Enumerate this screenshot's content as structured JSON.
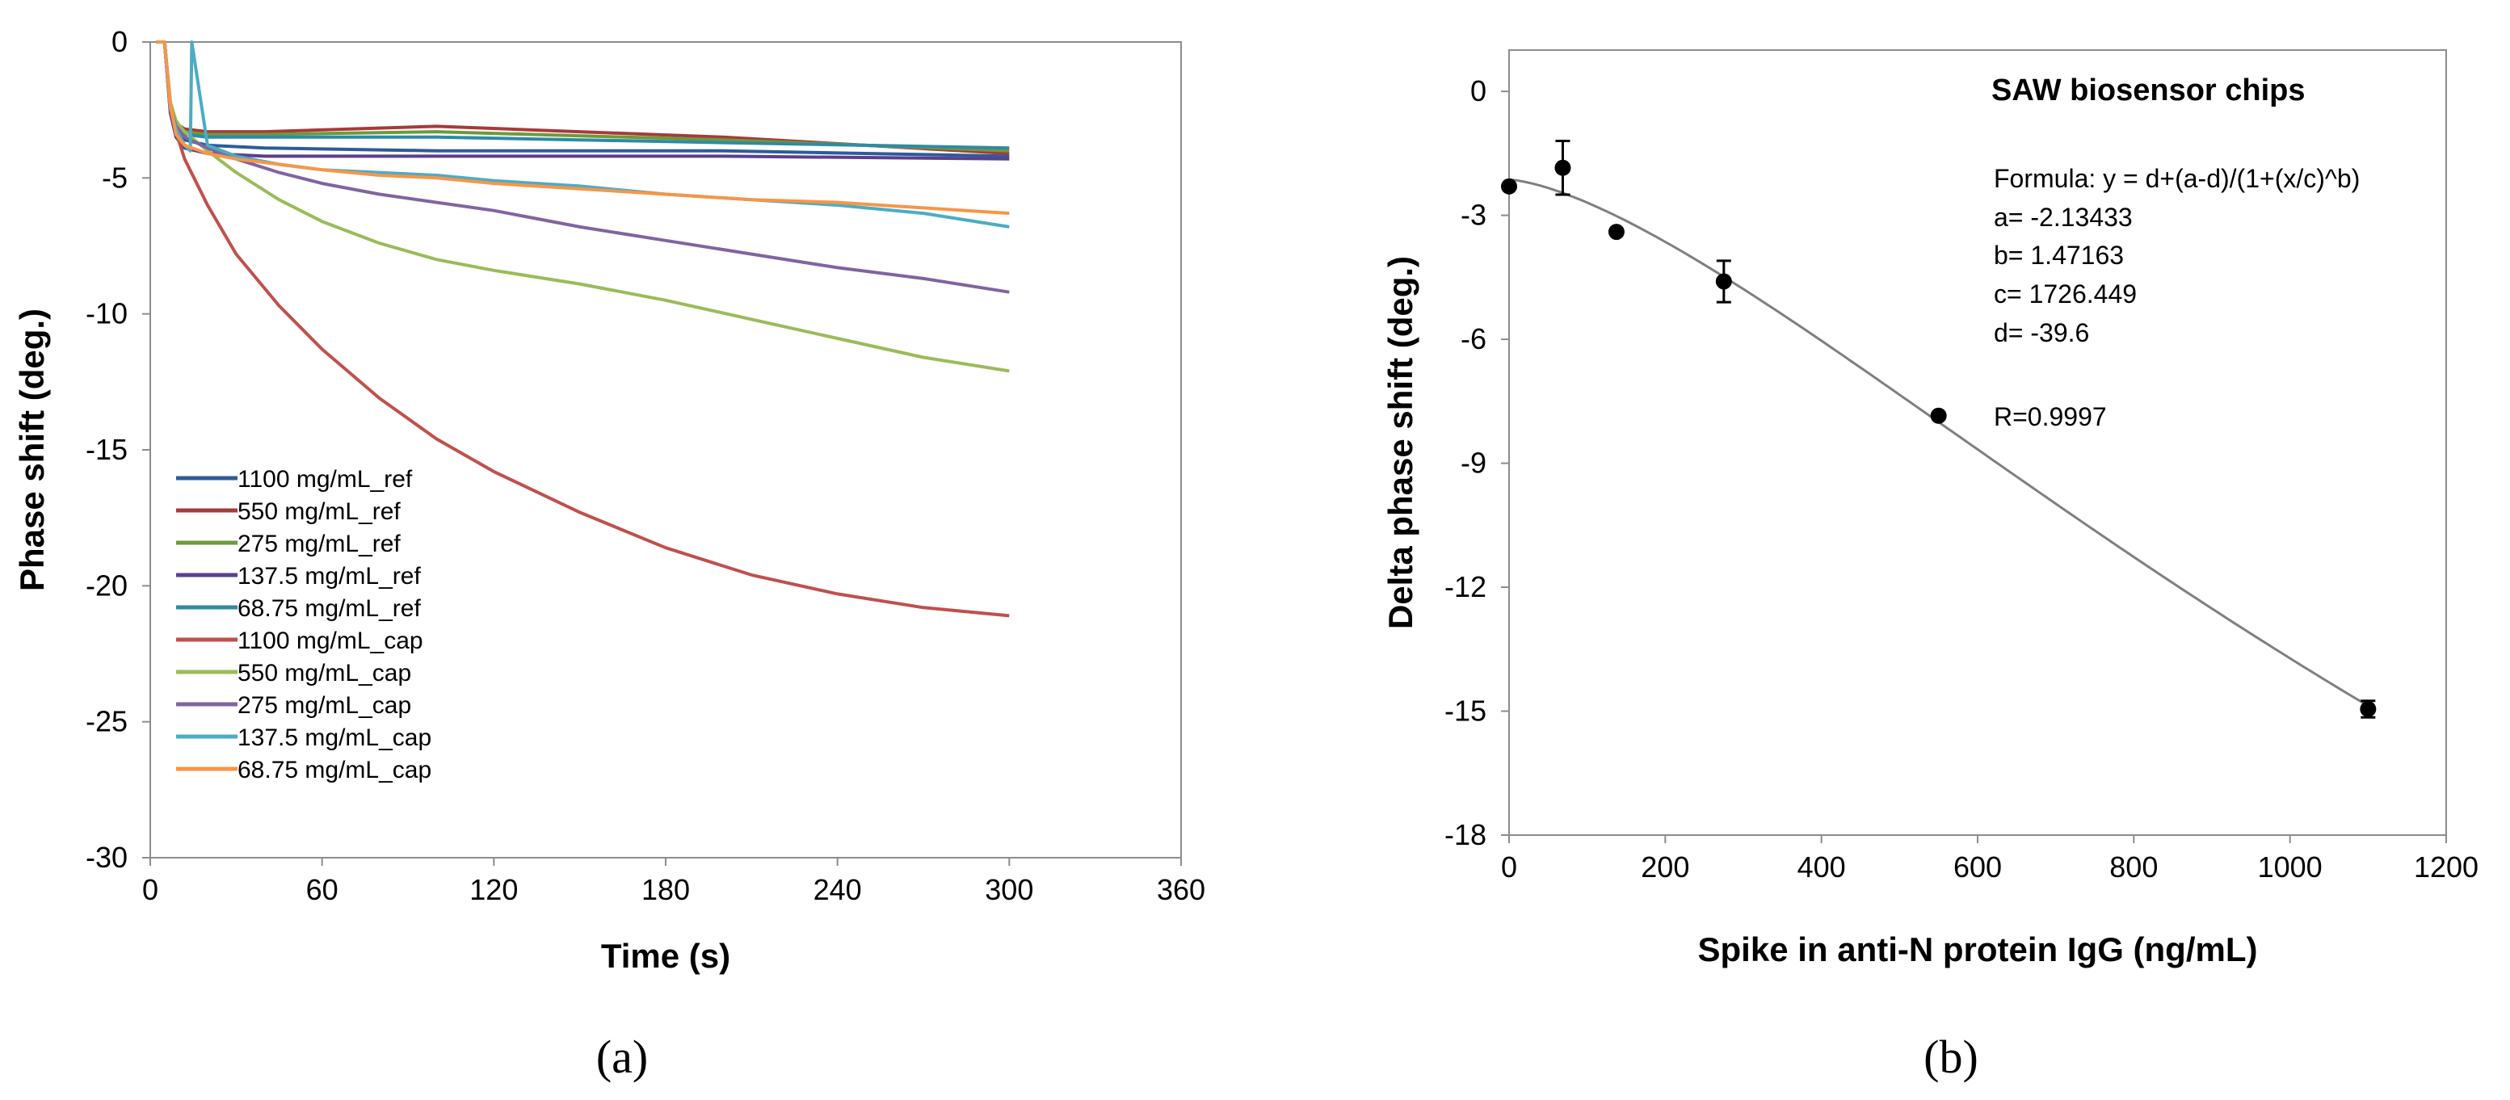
{
  "chart_data": [
    {
      "type": "line",
      "panel_label": "(a)",
      "title": "",
      "xlabel": "Time (s)",
      "ylabel": "Phase shift (deg.)",
      "xlim": [
        0,
        360
      ],
      "ylim": [
        -30,
        0
      ],
      "xticks": [
        "0",
        "60",
        "120",
        "180",
        "240",
        "300",
        "360"
      ],
      "yticks": [
        "0",
        "-5",
        "-10",
        "-15",
        "-20",
        "-25",
        "-30"
      ],
      "grid": false,
      "legend_position": "bottom-left",
      "series": [
        {
          "name": "1100 mg/mL_ref",
          "color": "#2e5b9a",
          "x": [
            2,
            5,
            7,
            9,
            12,
            20,
            40,
            100,
            200,
            300
          ],
          "y": [
            0,
            0,
            -2.5,
            -3.3,
            -3.6,
            -3.8,
            -3.9,
            -4.0,
            -4.0,
            -4.2
          ]
        },
        {
          "name": "550 mg/mL_ref",
          "color": "#a83a3a",
          "x": [
            2,
            5,
            7,
            9,
            12,
            20,
            40,
            100,
            200,
            300
          ],
          "y": [
            0,
            0,
            -2.2,
            -3.0,
            -3.2,
            -3.3,
            -3.3,
            -3.1,
            -3.5,
            -4.1
          ]
        },
        {
          "name": "275 mg/mL_ref",
          "color": "#6e9a3a",
          "x": [
            2,
            5,
            7,
            9,
            12,
            20,
            40,
            100,
            200,
            300
          ],
          "y": [
            0,
            0,
            -2.3,
            -3.1,
            -3.3,
            -3.4,
            -3.4,
            -3.3,
            -3.6,
            -4.0
          ]
        },
        {
          "name": "137.5 mg/mL_ref",
          "color": "#5b3f8f",
          "x": [
            2,
            5,
            7,
            9,
            12,
            20,
            40,
            100,
            200,
            300
          ],
          "y": [
            0,
            0,
            -2.6,
            -3.5,
            -3.9,
            -4.1,
            -4.2,
            -4.2,
            -4.2,
            -4.3
          ]
        },
        {
          "name": "68.75 mg/mL_ref",
          "color": "#2f8aa5",
          "x": [
            2,
            5,
            7,
            9,
            12,
            20,
            40,
            100,
            200,
            300
          ],
          "y": [
            0,
            0,
            -2.4,
            -3.2,
            -3.4,
            -3.5,
            -3.5,
            -3.5,
            -3.7,
            -3.9
          ]
        },
        {
          "name": "1100 mg/mL_cap",
          "color": "#c0504d",
          "x": [
            2,
            5,
            7,
            9,
            12,
            20,
            30,
            45,
            60,
            80,
            100,
            120,
            150,
            180,
            210,
            240,
            270,
            300
          ],
          "y": [
            0,
            0,
            -2.5,
            -3.3,
            -4.3,
            -6.0,
            -7.8,
            -9.7,
            -11.3,
            -13.1,
            -14.6,
            -15.8,
            -17.3,
            -18.6,
            -19.6,
            -20.3,
            -20.8,
            -21.1
          ]
        },
        {
          "name": "550 mg/mL_cap",
          "color": "#9bbb59",
          "x": [
            2,
            5,
            7,
            9,
            12,
            20,
            30,
            45,
            60,
            80,
            100,
            120,
            150,
            180,
            210,
            240,
            270,
            300
          ],
          "y": [
            0,
            0,
            -2.2,
            -2.9,
            -3.3,
            -4.0,
            -4.8,
            -5.8,
            -6.6,
            -7.4,
            -8.0,
            -8.4,
            -8.9,
            -9.5,
            -10.2,
            -10.9,
            -11.6,
            -12.1
          ]
        },
        {
          "name": "275 mg/mL_cap",
          "color": "#8064a2",
          "x": [
            2,
            5,
            7,
            9,
            12,
            20,
            30,
            45,
            60,
            80,
            100,
            120,
            150,
            180,
            210,
            240,
            270,
            300
          ],
          "y": [
            0,
            0,
            -2.4,
            -3.1,
            -3.5,
            -3.9,
            -4.3,
            -4.8,
            -5.2,
            -5.6,
            -5.9,
            -6.2,
            -6.8,
            -7.3,
            -7.8,
            -8.3,
            -8.7,
            -9.2
          ]
        },
        {
          "name": "137.5 mg/mL_cap",
          "color": "#4bacc6",
          "x": [
            2,
            5,
            7,
            9,
            12,
            14,
            14.5,
            20,
            30,
            45,
            60,
            80,
            100,
            120,
            150,
            180,
            210,
            240,
            270,
            300
          ],
          "y": [
            0,
            0,
            -2.4,
            -3.2,
            -3.8,
            -4.0,
            0,
            -3.8,
            -4.2,
            -4.5,
            -4.7,
            -4.8,
            -4.9,
            -5.1,
            -5.3,
            -5.6,
            -5.8,
            -6.0,
            -6.3,
            -6.8
          ]
        },
        {
          "name": "68.75 mg/mL_cap",
          "color": "#f79646",
          "x": [
            2,
            5,
            7,
            9,
            12,
            20,
            30,
            45,
            60,
            80,
            100,
            120,
            150,
            180,
            210,
            240,
            270,
            300
          ],
          "y": [
            0,
            0,
            -2.3,
            -3.4,
            -3.8,
            -4.1,
            -4.3,
            -4.5,
            -4.7,
            -4.9,
            -5.0,
            -5.2,
            -5.4,
            -5.6,
            -5.8,
            -5.9,
            -6.1,
            -6.3
          ]
        }
      ]
    },
    {
      "type": "scatter",
      "panel_label": "(b)",
      "title": "SAW biosensor  chips",
      "xlabel": "Spike in anti-N protein IgG (ng/mL)",
      "ylabel": "Delta phase shift (deg.)",
      "xlim": [
        0,
        1200
      ],
      "ylim": [
        -18,
        1
      ],
      "xticks": [
        "0",
        "200",
        "400",
        "600",
        "800",
        "1000",
        "1200"
      ],
      "yticks": [
        "0",
        "-3",
        "-6",
        "-9",
        "-12",
        "-15",
        "-18"
      ],
      "grid": false,
      "points": {
        "x": [
          0,
          68.75,
          137.5,
          275,
          550,
          1100
        ],
        "y": [
          -2.3,
          -1.85,
          -3.4,
          -4.6,
          -7.85,
          -14.95
        ],
        "err": [
          0,
          0.65,
          0,
          0.5,
          0,
          0.2
        ]
      },
      "fit": {
        "formula": "y = d+(a-d)/(1+(x/c)^b)",
        "a": -2.13433,
        "b": 1.47163,
        "c": 1726.449,
        "d": -39.6
      },
      "annotations": [
        "Formula: y = d+(a-d)/(1+(x/c)^b)",
        "a= -2.13433",
        "b= 1.47163",
        "c= 1726.449",
        "d= -39.6",
        "R=0.9997"
      ]
    }
  ]
}
